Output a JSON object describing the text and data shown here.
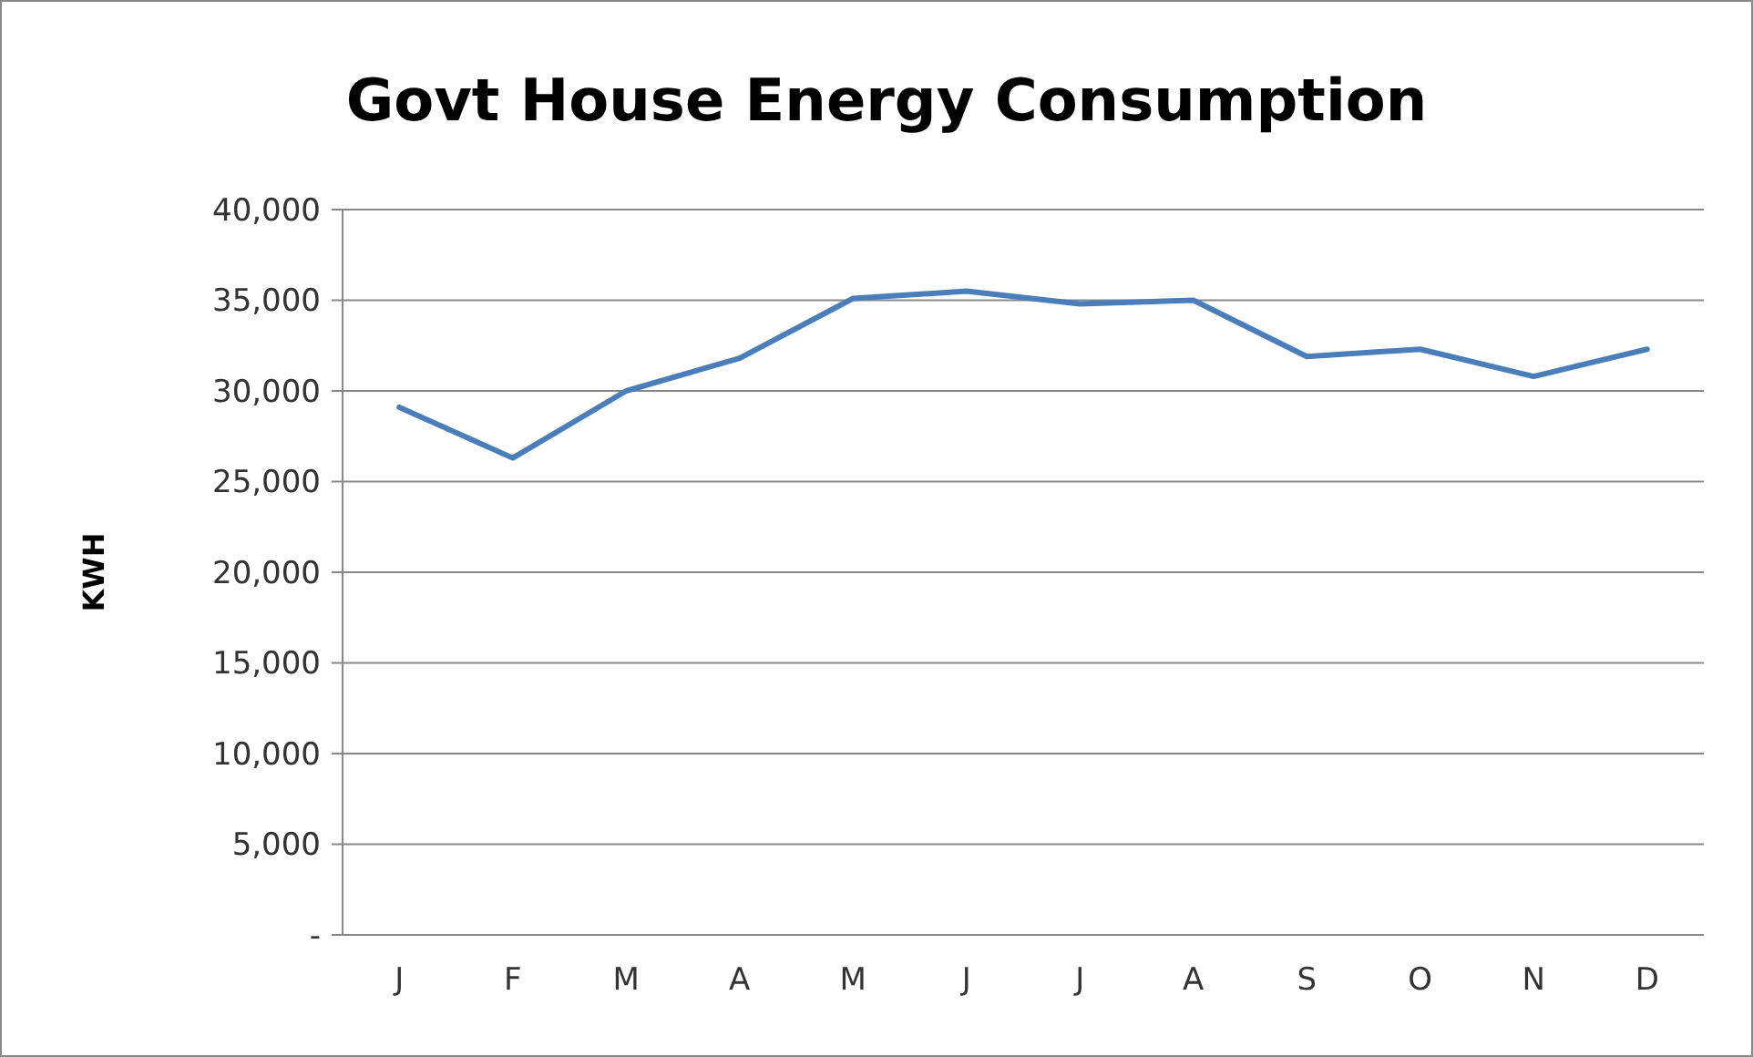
{
  "chart_data": {
    "type": "line",
    "title": "Govt House Energy Consumption",
    "ylabel": "KWH",
    "categories": [
      "J",
      "F",
      "M",
      "A",
      "M",
      "J",
      "J",
      "A",
      "S",
      "O",
      "N",
      "D"
    ],
    "series": [
      {
        "color": "#4a7ebb",
        "values": [
          29100,
          26300,
          30000,
          31800,
          35100,
          35500,
          34800,
          35000,
          31900,
          32300,
          30800,
          32300
        ]
      }
    ],
    "ylim": [
      0,
      40000
    ],
    "yticks": [
      {
        "value": 0,
        "label": "-"
      },
      {
        "value": 5000,
        "label": "5,000"
      },
      {
        "value": 10000,
        "label": "10,000"
      },
      {
        "value": 15000,
        "label": "15,000"
      },
      {
        "value": 20000,
        "label": "20,000"
      },
      {
        "value": 25000,
        "label": "25,000"
      },
      {
        "value": 30000,
        "label": "30,000"
      },
      {
        "value": 35000,
        "label": "35,000"
      },
      {
        "value": 40000,
        "label": "40,000"
      }
    ],
    "grid": "y",
    "marker": "none",
    "line_style": "solid"
  }
}
